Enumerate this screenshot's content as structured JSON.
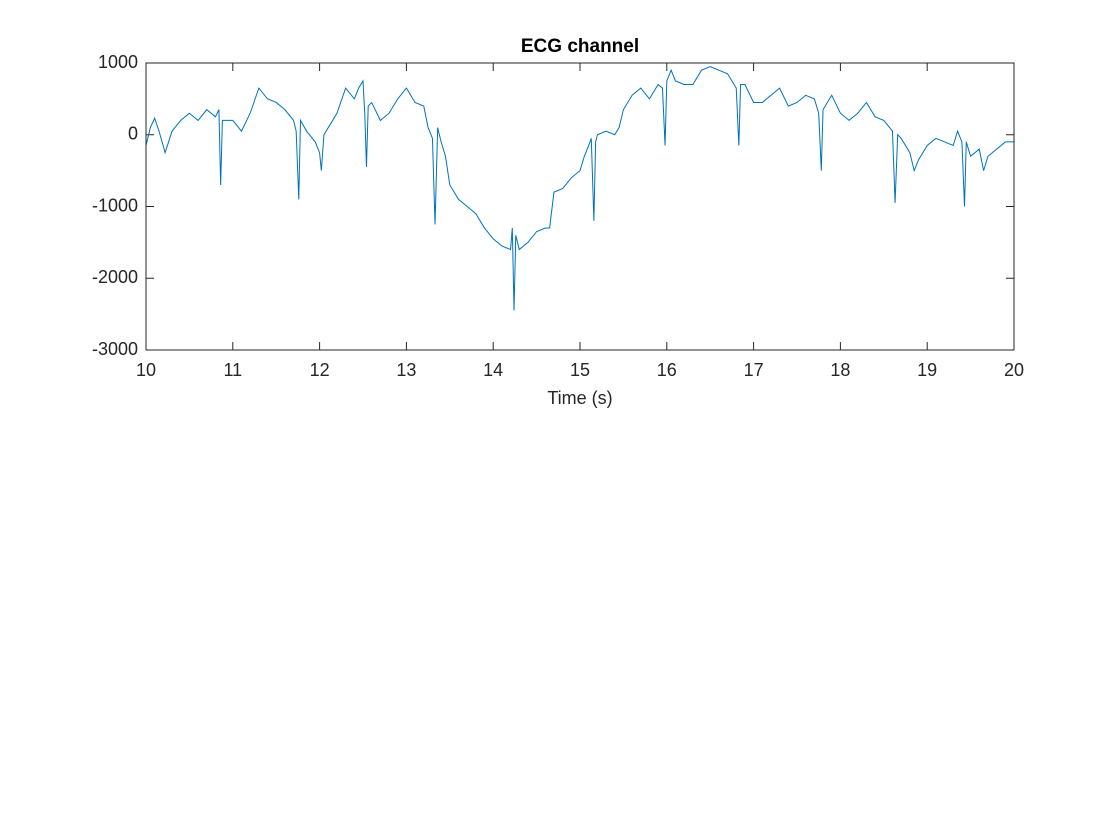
{
  "chart_data": {
    "type": "line",
    "title": "ECG channel",
    "xlabel": "Time (s)",
    "xlim": [
      10,
      20
    ],
    "ylim": [
      -3000,
      1000
    ],
    "xticks": [
      10,
      11,
      12,
      13,
      14,
      15,
      16,
      17,
      18,
      19,
      20
    ],
    "yticks": [
      -3000,
      -2000,
      -1000,
      0,
      1000
    ],
    "grid": false,
    "box": true,
    "series": [
      {
        "color": "#0072bd",
        "x": [
          10.0,
          10.05,
          10.1,
          10.15,
          10.22,
          10.3,
          10.4,
          10.5,
          10.6,
          10.7,
          10.8,
          10.84,
          10.86,
          10.88,
          11.0,
          11.1,
          11.2,
          11.3,
          11.4,
          11.5,
          11.6,
          11.7,
          11.73,
          11.76,
          11.78,
          11.85,
          11.95,
          12.0,
          12.02,
          12.05,
          12.1,
          12.2,
          12.3,
          12.4,
          12.45,
          12.5,
          12.52,
          12.54,
          12.56,
          12.6,
          12.7,
          12.8,
          12.9,
          13.0,
          13.1,
          13.2,
          13.25,
          13.3,
          13.33,
          13.36,
          13.4,
          13.45,
          13.5,
          13.6,
          13.7,
          13.8,
          13.9,
          14.0,
          14.1,
          14.2,
          14.22,
          14.24,
          14.26,
          14.3,
          14.4,
          14.5,
          14.6,
          14.65,
          14.7,
          14.8,
          14.9,
          15.0,
          15.05,
          15.1,
          15.13,
          15.16,
          15.18,
          15.2,
          15.3,
          15.4,
          15.45,
          15.5,
          15.6,
          15.7,
          15.8,
          15.9,
          15.95,
          15.98,
          16.0,
          16.05,
          16.1,
          16.2,
          16.3,
          16.4,
          16.5,
          16.6,
          16.7,
          16.8,
          16.83,
          16.85,
          16.9,
          17.0,
          17.1,
          17.2,
          17.3,
          17.4,
          17.5,
          17.6,
          17.7,
          17.75,
          17.78,
          17.8,
          17.9,
          18.0,
          18.1,
          18.2,
          18.3,
          18.4,
          18.5,
          18.6,
          18.63,
          18.66,
          18.7,
          18.8,
          18.85,
          18.9,
          19.0,
          19.1,
          19.2,
          19.3,
          19.35,
          19.4,
          19.43,
          19.45,
          19.5,
          19.6,
          19.65,
          19.7,
          19.8,
          19.9,
          20.0
        ],
        "values": [
          -150,
          100,
          230,
          50,
          -250,
          50,
          200,
          300,
          200,
          350,
          250,
          350,
          -700,
          200,
          200,
          50,
          300,
          650,
          500,
          450,
          350,
          200,
          50,
          -900,
          200,
          50,
          -100,
          -250,
          -500,
          0,
          100,
          300,
          650,
          500,
          650,
          750,
          300,
          -450,
          400,
          450,
          200,
          300,
          500,
          650,
          450,
          400,
          100,
          -50,
          -1250,
          100,
          -100,
          -300,
          -700,
          -900,
          -1000,
          -1100,
          -1300,
          -1450,
          -1550,
          -1600,
          -1300,
          -2450,
          -1400,
          -1600,
          -1500,
          -1350,
          -1300,
          -1300,
          -800,
          -750,
          -600,
          -500,
          -300,
          -150,
          -50,
          -1200,
          -100,
          0,
          50,
          0,
          100,
          350,
          550,
          650,
          500,
          700,
          650,
          -150,
          750,
          900,
          750,
          700,
          700,
          900,
          950,
          900,
          850,
          650,
          -150,
          700,
          700,
          450,
          450,
          550,
          650,
          400,
          450,
          550,
          500,
          300,
          -500,
          350,
          550,
          300,
          200,
          300,
          450,
          250,
          200,
          50,
          -950,
          0,
          -50,
          -250,
          -500,
          -350,
          -150,
          -50,
          -100,
          -150,
          50,
          -100,
          -1000,
          -100,
          -300,
          -200,
          -500,
          -300,
          -200,
          -100,
          -100
        ]
      }
    ]
  }
}
